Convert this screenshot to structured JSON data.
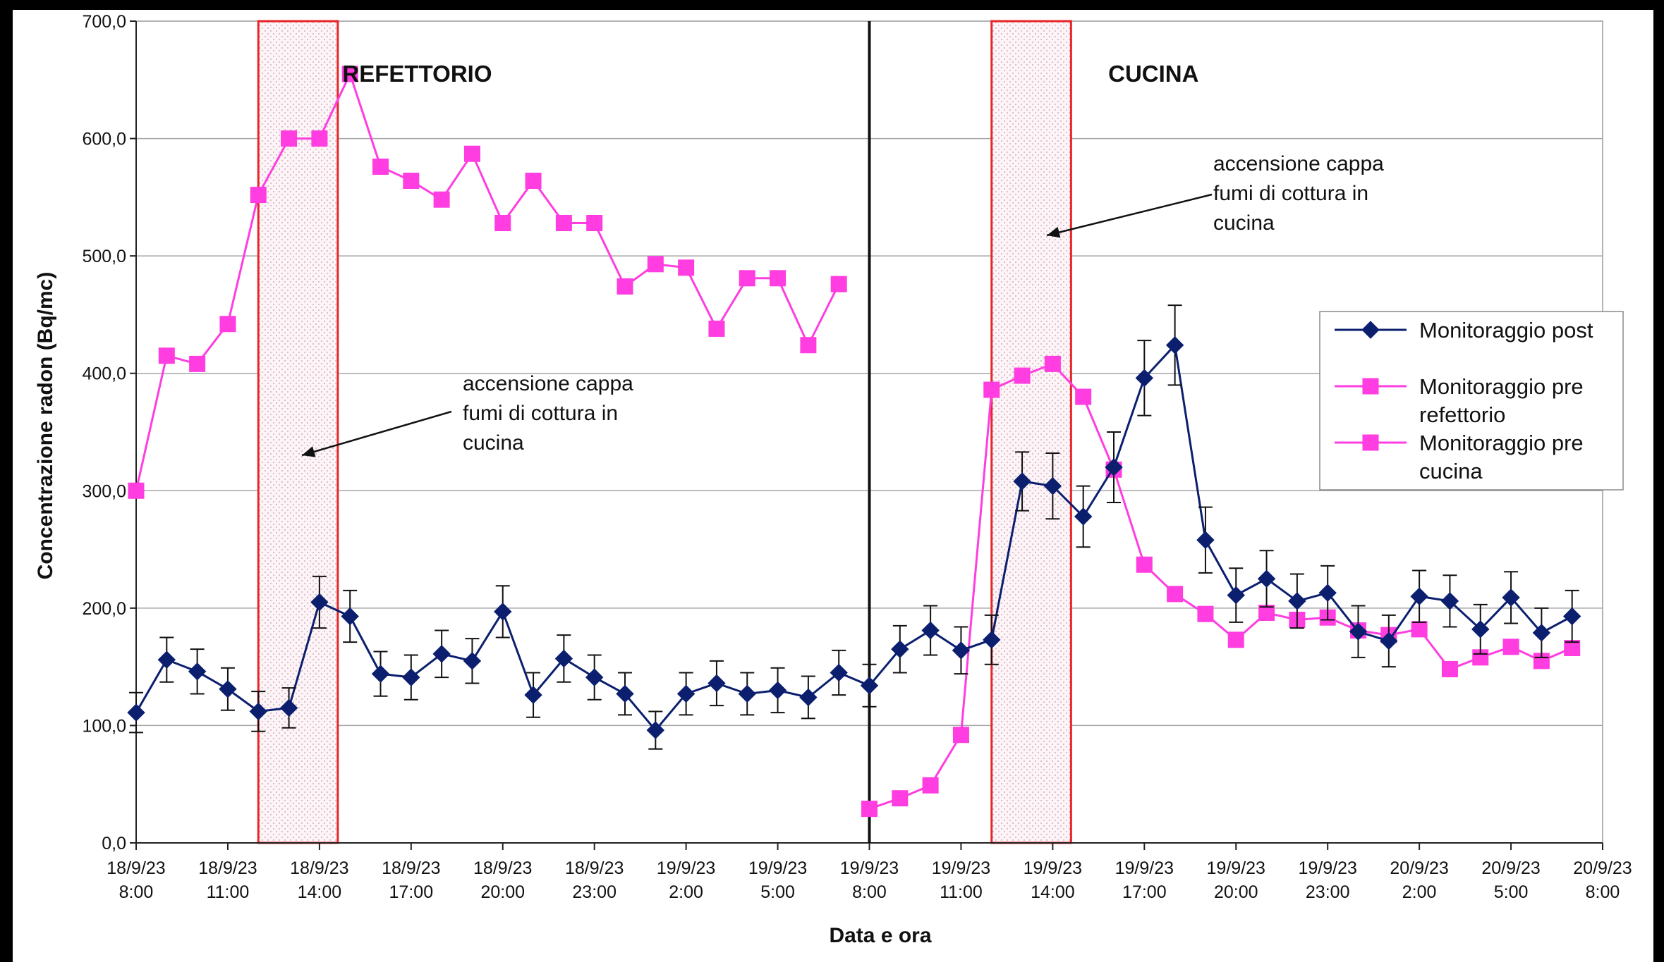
{
  "chart_data": {
    "type": "line",
    "title": "",
    "xlabel": "Data e ora",
    "ylabel": "Concentrazione radon (Bq/mc)",
    "ylim": [
      0,
      700
    ],
    "yticks": [
      "0,0",
      "100,0",
      "200,0",
      "300,0",
      "400,0",
      "500,0",
      "600,0",
      "700,0"
    ],
    "xtick_labels": [
      [
        "18/9/23",
        "8:00"
      ],
      [
        "18/9/23",
        "11:00"
      ],
      [
        "18/9/23",
        "14:00"
      ],
      [
        "18/9/23",
        "17:00"
      ],
      [
        "18/9/23",
        "20:00"
      ],
      [
        "18/9/23",
        "23:00"
      ],
      [
        "19/9/23",
        "2:00"
      ],
      [
        "19/9/23",
        "5:00"
      ],
      [
        "19/9/23",
        "8:00"
      ],
      [
        "19/9/23",
        "11:00"
      ],
      [
        "19/9/23",
        "14:00"
      ],
      [
        "19/9/23",
        "17:00"
      ],
      [
        "19/9/23",
        "20:00"
      ],
      [
        "19/9/23",
        "23:00"
      ],
      [
        "20/9/23",
        "2:00"
      ],
      [
        "20/9/23",
        "5:00"
      ],
      [
        "20/9/23",
        "8:00"
      ]
    ],
    "x_hours_range": [
      0,
      48
    ],
    "grid": "horizontal",
    "legend_position": "right",
    "series": [
      {
        "name": "Monitoraggio post",
        "color": "#0b1f6e",
        "marker": "diamond",
        "error_bars": true,
        "x": [
          0,
          1,
          2,
          3,
          4,
          5,
          6,
          7,
          8,
          9,
          10,
          11,
          12,
          13,
          14,
          15,
          16,
          17,
          18,
          19,
          20,
          21,
          22,
          23,
          24,
          25,
          26,
          27,
          28,
          29,
          30,
          31,
          32,
          33,
          34,
          35,
          36,
          37,
          38,
          39,
          40,
          41,
          42,
          43,
          44,
          45,
          46,
          47
        ],
        "values": [
          111,
          156,
          146,
          131,
          112,
          115,
          205,
          193,
          144,
          141,
          161,
          155,
          197,
          126,
          157,
          141,
          127,
          96,
          127,
          136,
          127,
          130,
          124,
          145,
          134,
          165,
          181,
          164,
          173,
          308,
          304,
          278,
          320,
          396,
          424,
          258,
          211,
          225,
          206,
          213,
          180,
          172,
          210,
          206,
          182,
          209,
          179,
          193
        ],
        "errors": [
          17,
          19,
          19,
          18,
          17,
          17,
          22,
          22,
          19,
          19,
          20,
          19,
          22,
          19,
          20,
          19,
          18,
          16,
          18,
          19,
          18,
          19,
          18,
          19,
          18,
          20,
          21,
          20,
          21,
          25,
          28,
          26,
          30,
          32,
          34,
          28,
          23,
          24,
          23,
          23,
          22,
          22,
          22,
          22,
          21,
          22,
          21,
          22
        ]
      },
      {
        "name": "Monitoraggio pre refettorio",
        "color": "#ff3de0",
        "marker": "square",
        "x": [
          0,
          1,
          2,
          3,
          4,
          5,
          6,
          7,
          8,
          9,
          10,
          11,
          12,
          13,
          14,
          15,
          16,
          17,
          18,
          19,
          20,
          21,
          22,
          23
        ],
        "values": [
          300,
          415,
          408,
          442,
          552,
          600,
          600,
          655,
          576,
          564,
          548,
          587,
          528,
          564,
          528,
          528,
          474,
          493,
          490,
          438,
          481,
          481,
          424,
          476
        ]
      },
      {
        "name": "Monitoraggio pre cucina",
        "color": "#ff3de0",
        "marker": "square",
        "x": [
          24,
          25,
          26,
          27,
          28,
          29,
          30,
          31,
          32,
          33,
          34,
          35,
          36,
          37,
          38,
          39,
          40,
          41,
          42,
          43,
          44,
          45,
          46,
          47
        ],
        "values": [
          29,
          38,
          49,
          92,
          386,
          398,
          408,
          380,
          318,
          237,
          212,
          195,
          173,
          196,
          190,
          192,
          181,
          177,
          182,
          148,
          158,
          167,
          155,
          166
        ]
      }
    ],
    "regions": [
      {
        "label": "REFETTORIO"
      },
      {
        "label": "CUCINA"
      }
    ],
    "annotations": [
      {
        "lines": [
          "accensione cappa",
          "fumi di cottura in",
          "cucina"
        ]
      },
      {
        "lines": [
          "accensione cappa",
          "fumi di cottura in",
          "cucina"
        ]
      }
    ],
    "legend_entries": [
      {
        "lines": [
          "Monitoraggio post"
        ],
        "color": "#0b1f6e",
        "marker": "diamond"
      },
      {
        "lines": [
          "Monitoraggio pre",
          "refettorio"
        ],
        "color": "#ff3de0",
        "marker": "square"
      },
      {
        "lines": [
          "Monitoraggio pre",
          "cucina"
        ],
        "color": "#ff3de0",
        "marker": "square"
      }
    ]
  }
}
